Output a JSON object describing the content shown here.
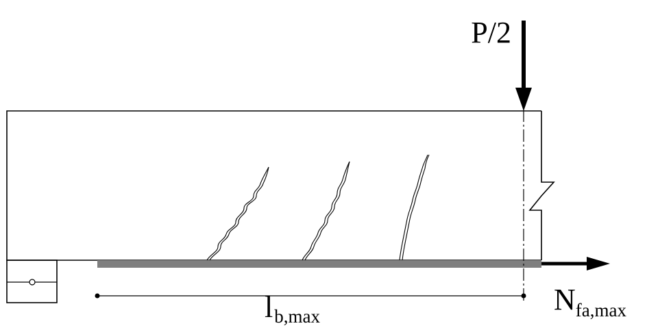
{
  "labels": {
    "load": "P/2",
    "bond_length": {
      "main": "l",
      "sub": "b,max"
    },
    "anchorage_force": {
      "main": "N",
      "sub": "fa,max"
    }
  },
  "colors": {
    "ink": "#000000",
    "frp_strip": "#7f7f7f"
  }
}
